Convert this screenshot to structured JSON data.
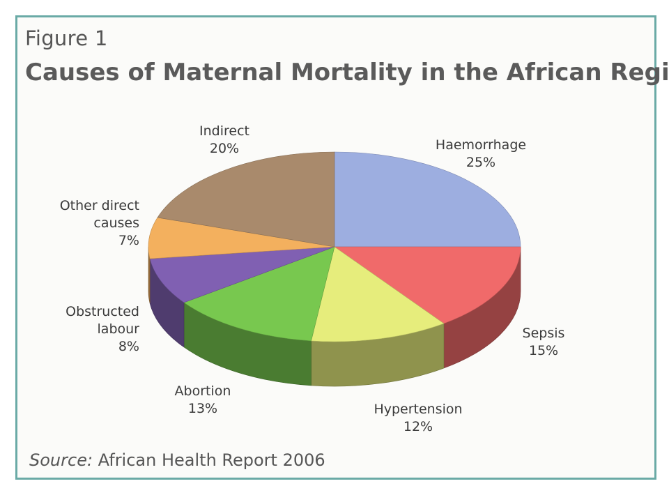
{
  "figure": {
    "label": "Figure 1",
    "title": "Causes of Maternal Mortality in the African Region",
    "source_prefix": "Source:",
    "source_text": " African Health Report 2006"
  },
  "chart_data": {
    "type": "pie",
    "three_d": true,
    "title": "Causes of Maternal Mortality in the African Region",
    "slices": [
      {
        "label_lines": [
          "Haemorrhage"
        ],
        "value": 25,
        "value_label": "25%",
        "color": "#9daee0"
      },
      {
        "label_lines": [
          "Sepsis"
        ],
        "value": 15,
        "value_label": "15%",
        "color": "#f06a6a"
      },
      {
        "label_lines": [
          "Hypertension"
        ],
        "value": 12,
        "value_label": "12%",
        "color": "#e6ed7c"
      },
      {
        "label_lines": [
          "Abortion"
        ],
        "value": 13,
        "value_label": "13%",
        "color": "#78c84f"
      },
      {
        "label_lines": [
          "Obstructed",
          "labour"
        ],
        "value": 8,
        "value_label": "8%",
        "color": "#8060b2"
      },
      {
        "label_lines": [
          "Other direct",
          "causes"
        ],
        "value": 7,
        "value_label": "7%",
        "color": "#f3b05e"
      },
      {
        "label_lines": [
          "Indirect"
        ],
        "value": 20,
        "value_label": "20%",
        "color": "#a98a6c"
      }
    ]
  }
}
